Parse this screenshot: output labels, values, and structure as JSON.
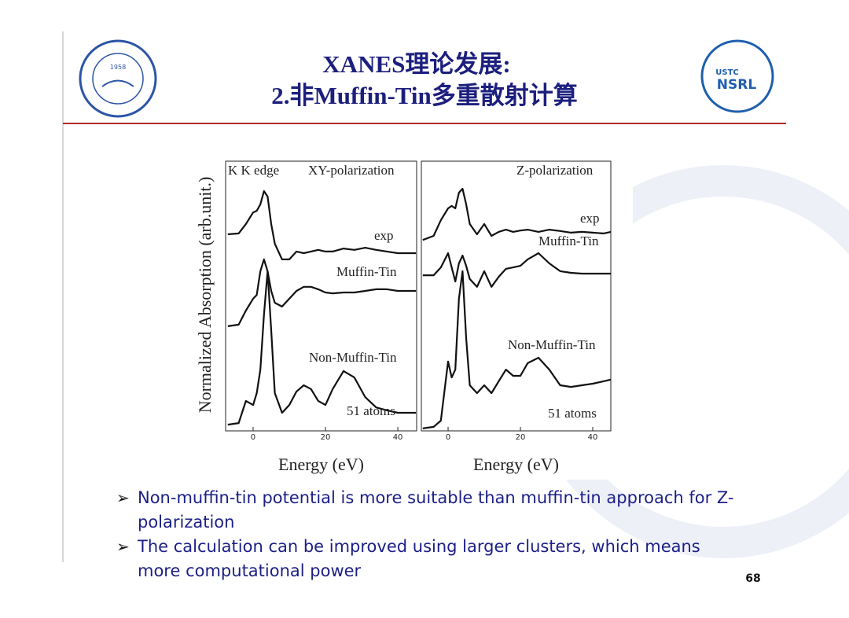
{
  "header": {
    "title_line1": "XANES理论发展:",
    "title_line2": "2.非Muffin-Tin多重散射计算"
  },
  "logo_left": {
    "year": "1958"
  },
  "logo_right": {
    "top": "USTC",
    "bottom": "NSRL"
  },
  "chart_data": [
    {
      "type": "line",
      "ylabel": "Normalized Absorption (arb.unit.)",
      "xlabel": "Energy (eV)",
      "annotations": [
        "K K edge",
        "XY-polarization",
        "51 atoms"
      ],
      "x": [
        -7,
        -4,
        -2,
        0,
        1,
        2,
        3,
        4,
        5,
        6,
        8,
        10,
        12,
        14,
        16,
        18,
        20,
        22,
        25,
        28,
        31,
        34,
        37,
        40,
        43,
        45
      ],
      "xlim": [
        -7.6,
        45.2
      ],
      "xticks": [
        0,
        20,
        40
      ],
      "ylim": [
        0,
        10
      ],
      "series": [
        {
          "name": "exp",
          "color": "#111111",
          "values": [
            7.29,
            7.32,
            7.67,
            8.1,
            8.16,
            8.4,
            8.89,
            8.69,
            7.67,
            6.94,
            6.36,
            6.36,
            6.65,
            6.59,
            6.65,
            6.71,
            6.65,
            6.65,
            6.76,
            6.71,
            6.79,
            6.71,
            6.65,
            6.59,
            6.59,
            6.59
          ]
        },
        {
          "name": "Muffin-Tin",
          "color": "#111111",
          "values": [
            3.88,
            3.94,
            4.46,
            4.9,
            5.04,
            5.92,
            6.36,
            5.92,
            5.19,
            4.75,
            4.61,
            4.9,
            5.19,
            5.34,
            5.34,
            5.25,
            5.13,
            5.1,
            5.13,
            5.13,
            5.19,
            5.25,
            5.25,
            5.19,
            5.19,
            5.19
          ]
        },
        {
          "name": "Non-Muffin-Tin",
          "color": "#111111",
          "values": [
            0.23,
            0.29,
            1.11,
            0.96,
            1.4,
            2.27,
            4.31,
            5.92,
            3.73,
            1.4,
            0.67,
            0.96,
            1.46,
            1.69,
            1.55,
            1.11,
            0.96,
            1.55,
            2.22,
            1.98,
            1.25,
            0.87,
            0.76,
            0.67,
            0.67,
            0.67
          ]
        }
      ]
    },
    {
      "type": "line",
      "xlabel": "Energy (eV)",
      "annotations": [
        "Z-polarization",
        "51 atoms"
      ],
      "x": [
        -7,
        -4,
        -2,
        0,
        1,
        2,
        3,
        4,
        5,
        6,
        8,
        10,
        12,
        14,
        16,
        18,
        20,
        22,
        25,
        28,
        31,
        34,
        37,
        40,
        43,
        45
      ],
      "xlim": [
        -7.4,
        45
      ],
      "xticks": [
        0,
        20,
        40
      ],
      "ylim": [
        0,
        10
      ],
      "series": [
        {
          "name": "exp",
          "color": "#111111",
          "values": [
            7.08,
            7.23,
            7.81,
            8.25,
            8.34,
            8.25,
            8.83,
            8.98,
            8.4,
            7.67,
            7.29,
            7.67,
            7.23,
            7.38,
            7.46,
            7.38,
            7.43,
            7.46,
            7.38,
            7.46,
            7.41,
            7.35,
            7.38,
            7.35,
            7.32,
            7.38
          ]
        },
        {
          "name": "Muffin-Tin",
          "color": "#111111",
          "values": [
            5.77,
            5.77,
            6.06,
            6.59,
            6.06,
            5.54,
            6.21,
            6.5,
            6.12,
            5.63,
            5.34,
            5.92,
            5.34,
            5.71,
            6.01,
            6.06,
            6.12,
            6.36,
            6.59,
            6.21,
            5.92,
            5.86,
            5.83,
            5.83,
            5.83,
            5.83
          ]
        },
        {
          "name": "Non-Muffin-Tin",
          "color": "#111111",
          "values": [
            0.09,
            0.15,
            0.38,
            2.57,
            1.98,
            2.27,
            4.9,
            5.92,
            3.44,
            1.69,
            1.4,
            1.69,
            1.4,
            1.84,
            2.27,
            2.04,
            2.04,
            2.51,
            2.71,
            2.27,
            1.69,
            1.63,
            1.69,
            1.75,
            1.84,
            1.9
          ]
        }
      ]
    }
  ],
  "bullets": [
    "Non-muffin-tin potential is more suitable than muffin-tin approach for Z-polarization",
    "The calculation can be improved using larger clusters, which means more computational power"
  ],
  "page_number": "68"
}
